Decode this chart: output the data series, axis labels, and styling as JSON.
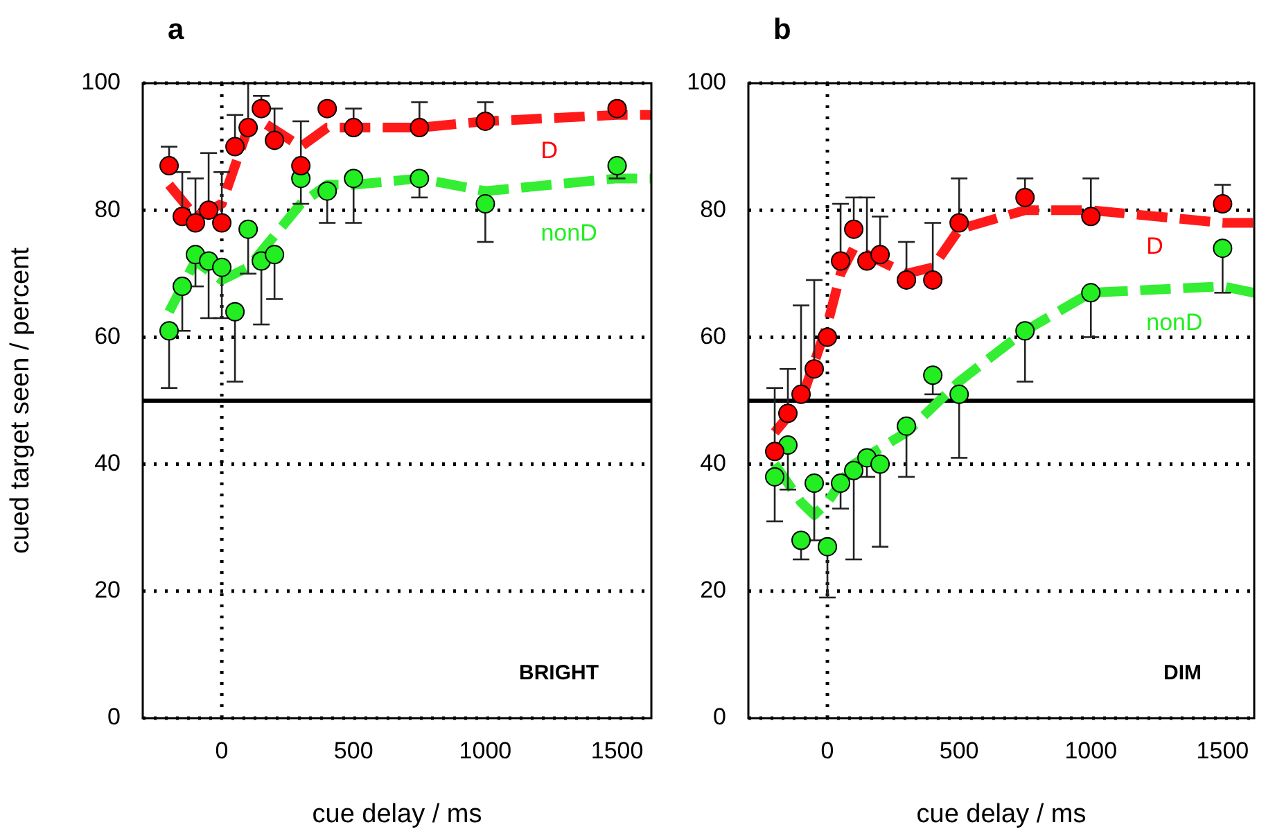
{
  "chart_data": [
    {
      "type": "scatter",
      "title": "a",
      "xlabel": "cue delay / ms",
      "ylabel": "cued target seen / percent",
      "annotations": [
        "BRIGHT"
      ],
      "xlim": [
        -300,
        1630
      ],
      "ylim": [
        0,
        100
      ],
      "xticks": [
        0,
        500,
        1000,
        1500
      ],
      "yticks": [
        0,
        20,
        40,
        60,
        80,
        100
      ],
      "grid": "y",
      "x": [
        -200,
        -150,
        -100,
        -50,
        0,
        50,
        100,
        150,
        200,
        300,
        400,
        500,
        750,
        1000,
        1500
      ],
      "ref_lines": [
        {
          "axis": "y",
          "value": 50,
          "color": "#000000",
          "line_style": "solid"
        },
        {
          "axis": "x",
          "value": 0,
          "color": "#000000",
          "line_style": "dotted"
        }
      ],
      "series": [
        {
          "type": "line",
          "marker": "none",
          "color": "#ff1a1a",
          "line_style": "dashed",
          "x": [
            -200,
            -100,
            0,
            100,
            150,
            300,
            400,
            500,
            750,
            1000,
            1500,
            1630
          ],
          "values": [
            84,
            79,
            81,
            93,
            94,
            90,
            93,
            93,
            93,
            94,
            95,
            95
          ]
        },
        {
          "type": "line",
          "marker": "none",
          "color": "#33ee33",
          "line_style": "dashed",
          "x": [
            -200,
            -100,
            0,
            100,
            300,
            400,
            500,
            750,
            1000,
            1500,
            1630
          ],
          "values": [
            64,
            72,
            69,
            71,
            81,
            84,
            84,
            85,
            83,
            85,
            85
          ]
        },
        {
          "name": "D",
          "marker": "circle",
          "color": "#ff0000",
          "values": [
            87,
            79,
            78,
            80,
            78,
            90,
            93,
            96,
            91,
            87,
            96,
            93,
            93,
            94,
            96
          ],
          "errors": [
            [
              87,
              90
            ],
            [
              79,
              86
            ],
            [
              78,
              85
            ],
            [
              80,
              89
            ],
            [
              78,
              86
            ],
            [
              90,
              95
            ],
            [
              93,
              100
            ],
            [
              96,
              98
            ],
            [
              91,
              96
            ],
            [
              87,
              94
            ],
            null,
            [
              93,
              96
            ],
            [
              93,
              97
            ],
            [
              94,
              97
            ],
            null
          ]
        },
        {
          "name": "nonD",
          "marker": "circle",
          "color": "#22ee22",
          "values": [
            61,
            68,
            73,
            72,
            71,
            64,
            77,
            72,
            73,
            85,
            83,
            85,
            85,
            81,
            87
          ],
          "errors": [
            [
              52,
              61
            ],
            [
              61,
              68
            ],
            [
              68,
              73
            ],
            [
              63,
              72
            ],
            [
              63,
              71
            ],
            [
              53,
              64
            ],
            [
              70,
              77
            ],
            [
              62,
              72
            ],
            [
              66,
              73
            ],
            [
              81,
              85
            ],
            [
              78,
              83
            ],
            [
              78,
              85
            ],
            [
              82,
              85
            ],
            [
              75,
              81
            ],
            [
              85,
              87
            ]
          ]
        }
      ]
    },
    {
      "type": "scatter",
      "title": "b",
      "xlabel": "cue delay / ms",
      "annotations": [
        "DIM"
      ],
      "xlim": [
        -300,
        1620
      ],
      "ylim": [
        0,
        100
      ],
      "xticks": [
        0,
        500,
        1000,
        1500
      ],
      "yticks": [
        0,
        20,
        40,
        60,
        80,
        100
      ],
      "grid": "y",
      "x": [
        -200,
        -150,
        -100,
        -50,
        0,
        50,
        100,
        150,
        200,
        300,
        400,
        500,
        750,
        1000,
        1500
      ],
      "ref_lines": [
        {
          "axis": "y",
          "value": 50,
          "color": "#000000",
          "line_style": "solid"
        },
        {
          "axis": "x",
          "value": 0,
          "color": "#000000",
          "line_style": "dotted"
        }
      ],
      "series": [
        {
          "type": "line",
          "marker": "none",
          "color": "#ff1a1a",
          "line_style": "dashed",
          "x": [
            -200,
            -100,
            0,
            50,
            100,
            150,
            300,
            400,
            500,
            750,
            1000,
            1500,
            1620
          ],
          "values": [
            45,
            50,
            62,
            70,
            74,
            73,
            70,
            71,
            77,
            80,
            80,
            78,
            78
          ]
        },
        {
          "type": "line",
          "marker": "none",
          "color": "#33ee33",
          "line_style": "dashed",
          "x": [
            -200,
            -100,
            -50,
            0,
            100,
            300,
            500,
            750,
            1000,
            1500,
            1620
          ],
          "values": [
            40,
            34,
            32,
            34,
            40,
            45,
            53,
            61,
            67,
            68,
            67
          ]
        },
        {
          "name": "D",
          "marker": "circle",
          "color": "#ff0000",
          "values": [
            42,
            48,
            51,
            55,
            60,
            72,
            77,
            72,
            73,
            69,
            69,
            78,
            82,
            79,
            81
          ],
          "errors": [
            [
              42,
              52
            ],
            [
              48,
              55
            ],
            [
              51,
              65
            ],
            [
              55,
              69
            ],
            null,
            [
              72,
              81
            ],
            [
              77,
              82
            ],
            [
              72,
              82
            ],
            [
              73,
              79
            ],
            [
              69,
              75
            ],
            [
              69,
              78
            ],
            [
              78,
              85
            ],
            [
              82,
              85
            ],
            [
              79,
              85
            ],
            [
              81,
              84
            ]
          ]
        },
        {
          "name": "nonD",
          "marker": "circle",
          "color": "#22ee22",
          "values": [
            38,
            43,
            28,
            37,
            27,
            37,
            39,
            41,
            40,
            46,
            54,
            51,
            61,
            67,
            74
          ],
          "errors": [
            [
              31,
              38
            ],
            [
              36,
              43
            ],
            [
              25,
              28
            ],
            [
              28,
              37
            ],
            [
              19,
              27
            ],
            [
              33,
              37
            ],
            [
              25,
              39
            ],
            [
              38,
              41
            ],
            [
              27,
              40
            ],
            [
              38,
              46
            ],
            [
              51,
              54
            ],
            [
              41,
              51
            ],
            [
              53,
              61
            ],
            [
              60,
              67
            ],
            [
              67,
              74
            ]
          ]
        }
      ]
    }
  ]
}
